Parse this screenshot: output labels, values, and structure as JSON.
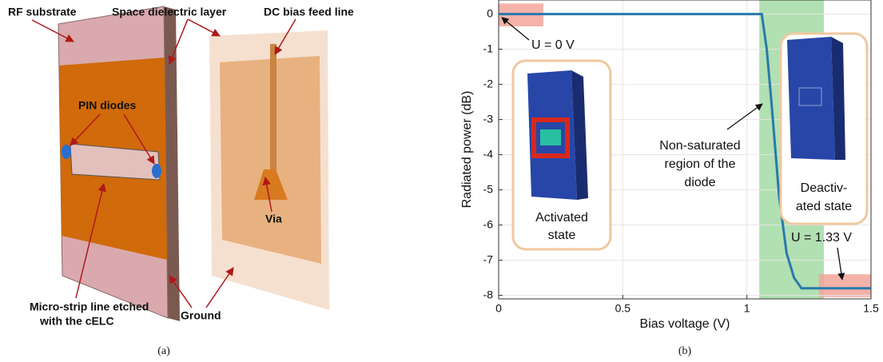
{
  "diagram": {
    "labels": {
      "rf_substrate": "RF substrate",
      "space_layer": "Space dielectric layer",
      "dc_feed": "DC bias feed line",
      "pin_diodes": "PIN diodes",
      "via": "Via",
      "microstrip": [
        "Micro-strip line etched",
        "with the cELC"
      ],
      "ground": "Ground"
    },
    "caption": "(a)"
  },
  "chart_data": {
    "type": "line",
    "caption": "(b)",
    "xlabel": "Bias voltage (V)",
    "ylabel": "Radiated power (dB)",
    "x": [
      0,
      1.06,
      1.08,
      1.1,
      1.13,
      1.16,
      1.19,
      1.22,
      1.5
    ],
    "series": [
      {
        "color": "#2a78ac",
        "values": [
          0,
          0,
          -1,
          -2.6,
          -5.2,
          -6.8,
          -7.5,
          -7.8,
          -7.8
        ]
      }
    ],
    "xlim": [
      0,
      1.5
    ],
    "xticks": [
      0,
      0.5,
      1,
      1.5
    ],
    "ylim": [
      -8.1,
      0.4
    ],
    "yticks": [
      -8,
      -7,
      -6,
      -5,
      -4,
      -3,
      -2,
      -1,
      0
    ],
    "grid": true,
    "regions": [
      {
        "x": [
          1.05,
          1.31
        ],
        "y": [
          -8.1,
          0.4
        ],
        "color": "#a3dba4"
      },
      {
        "x": [
          0,
          0.18
        ],
        "y": [
          -0.35,
          0.3
        ],
        "color": "#f2a49a"
      },
      {
        "x": [
          1.29,
          1.5
        ],
        "y": [
          -8.05,
          -7.4
        ],
        "color": "#f2a49a"
      }
    ],
    "annotations": {
      "u0": "U = 0 V",
      "nonsat": [
        "Non-saturated",
        "region of the",
        "diode"
      ],
      "activated": [
        "Activated",
        "state"
      ],
      "deactivated": [
        "Deactiv-",
        "ated state"
      ],
      "u133": "U = 1.33 V"
    }
  }
}
